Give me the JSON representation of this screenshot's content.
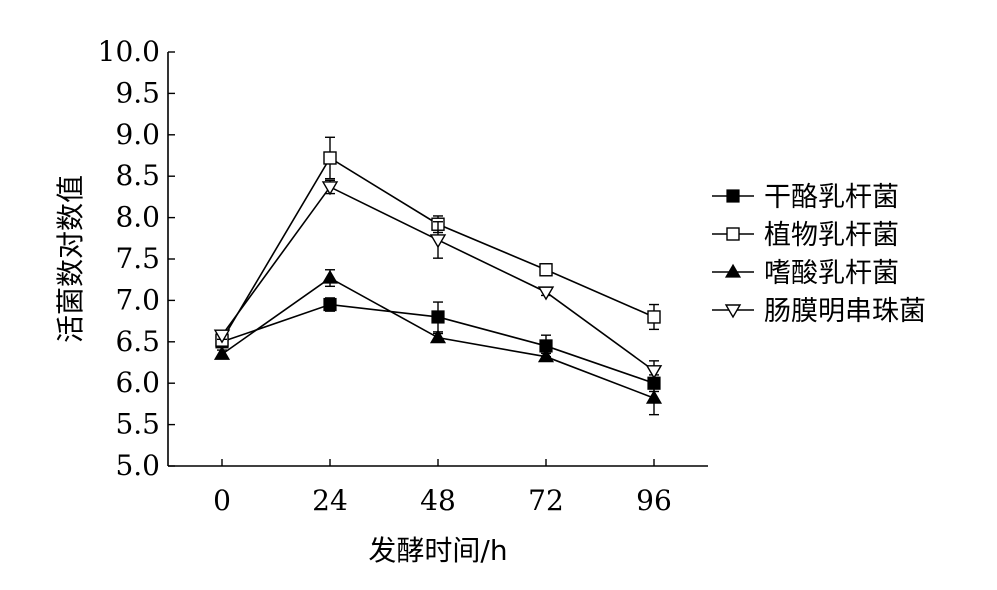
{
  "chart_data": {
    "type": "line",
    "title": "",
    "xlabel": "发酵时间/h",
    "ylabel": "活菌数对数值",
    "x": [
      0,
      24,
      48,
      72,
      96
    ],
    "xlim": [
      -12,
      108
    ],
    "ylim": [
      5.0,
      10.0
    ],
    "yticks": [
      5.0,
      5.5,
      6.0,
      6.5,
      7.0,
      7.5,
      8.0,
      8.5,
      9.0,
      9.5,
      10.0
    ],
    "ytick_labels": [
      "5.0",
      "5.5",
      "6.0",
      "6.5",
      "7.0",
      "7.5",
      "8.0",
      "8.5",
      "9.0",
      "9.5",
      "10.0"
    ],
    "xtick_labels": [
      "0",
      "24",
      "48",
      "72",
      "96"
    ],
    "grid": false,
    "legend_position": "right",
    "series": [
      {
        "name": "干酪乳杆菌",
        "marker": "square-filled",
        "values": [
          6.5,
          6.95,
          6.8,
          6.45,
          6.0
        ],
        "errors": [
          0.06,
          0.08,
          0.18,
          0.13,
          0.1
        ]
      },
      {
        "name": "植物乳杆菌",
        "marker": "square-open",
        "values": [
          6.52,
          8.72,
          7.92,
          7.37,
          6.8
        ],
        "errors": [
          0.05,
          0.25,
          0.1,
          0.07,
          0.15
        ]
      },
      {
        "name": "嗜酸乳杆菌",
        "marker": "triangle-up-filled",
        "values": [
          6.35,
          7.27,
          6.55,
          6.32,
          5.82
        ],
        "errors": [
          0.05,
          0.1,
          0.05,
          0.04,
          0.2
        ]
      },
      {
        "name": "肠膜明串珠菌",
        "marker": "triangle-down-open",
        "values": [
          6.58,
          8.37,
          7.73,
          7.1,
          6.15
        ],
        "errors": [
          0.05,
          0.08,
          0.22,
          0.04,
          0.12
        ]
      }
    ]
  }
}
